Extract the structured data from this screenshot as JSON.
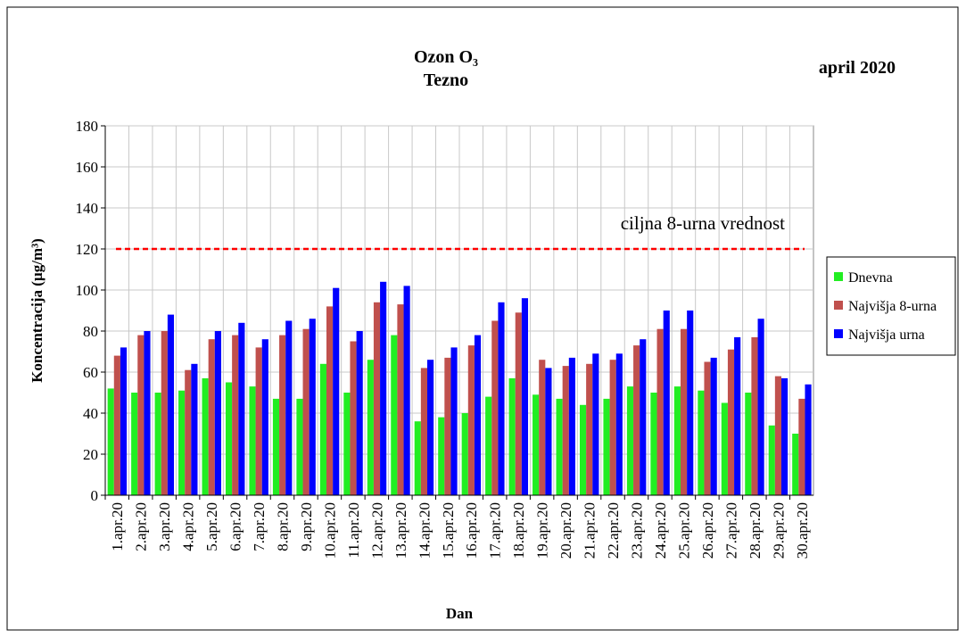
{
  "chart_data": {
    "type": "bar",
    "title": "Ozon O₃",
    "subtitle": "Tezno",
    "annotation": "april 2020",
    "x_label": "Dan",
    "y_label": "Koncentracija  (µg/m³)",
    "categories": [
      "1.apr.20",
      "2.apr.20",
      "3.apr.20",
      "4.apr.20",
      "5.apr.20",
      "6.apr.20",
      "7.apr.20",
      "8.apr.20",
      "9.apr.20",
      "10.apr.20",
      "11.apr.20",
      "12.apr.20",
      "13.apr.20",
      "14.apr.20",
      "15.apr.20",
      "16.apr.20",
      "17.apr.20",
      "18.apr.20",
      "19.apr.20",
      "20.apr.20",
      "21.apr.20",
      "22.apr.20",
      "23.apr.20",
      "24.apr.20",
      "25.apr.20",
      "26.apr.20",
      "27.apr.20",
      "28.apr.20",
      "29.apr.20",
      "30.apr.20"
    ],
    "series": [
      {
        "name": "Dnevna",
        "color": "#22ee22",
        "values": [
          52,
          50,
          50,
          51,
          57,
          55,
          53,
          47,
          47,
          64,
          50,
          66,
          78,
          36,
          38,
          40,
          48,
          57,
          49,
          47,
          44,
          47,
          53,
          50,
          53,
          51,
          45,
          50,
          34,
          30
        ]
      },
      {
        "name": "Najvišja 8-urna",
        "color": "#c0504d",
        "values": [
          68,
          78,
          80,
          61,
          76,
          78,
          72,
          78,
          81,
          92,
          75,
          94,
          93,
          62,
          67,
          73,
          85,
          89,
          66,
          63,
          64,
          66,
          73,
          81,
          81,
          65,
          71,
          77,
          58,
          47
        ]
      },
      {
        "name": "Najvišja urna",
        "color": "#0000ff",
        "values": [
          72,
          80,
          88,
          64,
          80,
          84,
          76,
          85,
          86,
          101,
          80,
          104,
          102,
          66,
          72,
          78,
          94,
          96,
          62,
          67,
          69,
          69,
          76,
          90,
          90,
          67,
          77,
          86,
          57,
          54
        ]
      }
    ],
    "reference_line": {
      "value": 120,
      "label": "ciljna 8-urna vrednost",
      "color": "#ff0000"
    },
    "ylim": [
      0,
      180
    ],
    "yticks": [
      0,
      20,
      40,
      60,
      80,
      100,
      120,
      140,
      160,
      180
    ],
    "grid": true,
    "legend": "right"
  }
}
